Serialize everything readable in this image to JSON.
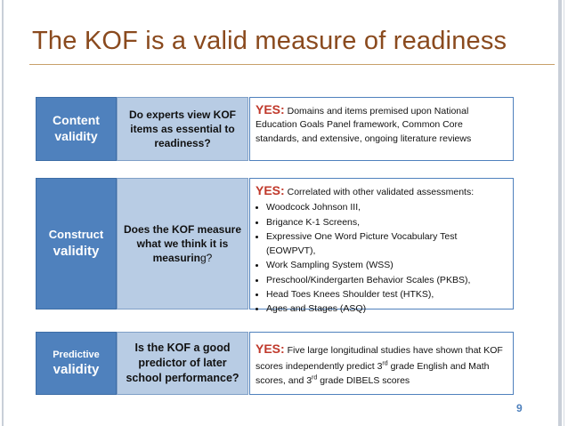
{
  "slide": {
    "title": "The KOF is a valid measure of readiness",
    "page_number": "9"
  },
  "content": {
    "label_line1": "Content",
    "label_line2": "validity",
    "question": "Do experts view KOF items as essential to readiness?",
    "yes_label": "YES:",
    "answer": "Domains and items premised upon National Education Goals Panel framework, Common Core standards, and extensive, ongoing literature reviews"
  },
  "construct": {
    "label_line1": "Construct",
    "label_line2": "validity",
    "question_main": "Does the KOF measure what we think it is measurin",
    "question_end": "g?",
    "yes_label": "YES:",
    "answer_intro": "Correlated with other validated assessments:",
    "items": [
      "Woodcock Johnson III,",
      "Brigance K-1 Screens,",
      "Expressive One Word Picture Vocabulary Test (EOWPVT),",
      "Work Sampling System (WSS)",
      "Preschool/Kindergarten Behavior Scales (PKBS),",
      "Head Toes Knees Shoulder test (HTKS),",
      "Ages and Stages (ASQ)"
    ]
  },
  "predictive": {
    "label_line1": "Predictive",
    "label_line2": "validity",
    "question": "Is the KOF a good predictor of later school performance?",
    "yes_label": "YES:",
    "answer_part1": "Five large longitudinal studies have shown that KOF scores independently predict 3",
    "sup1": "rd",
    "answer_part2": " grade English and Math scores, and 3",
    "sup2": "rd",
    "answer_part3": " grade DIBELS scores"
  }
}
